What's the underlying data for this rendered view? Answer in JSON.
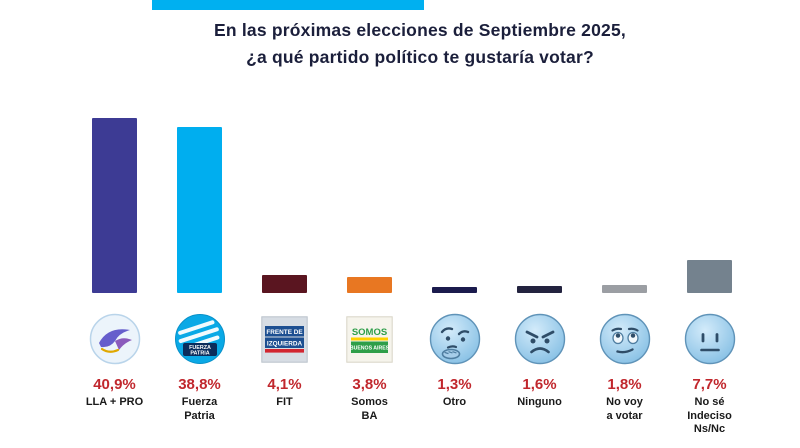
{
  "accent_color": "#00b0f0",
  "percent_color": "#c1272d",
  "title": {
    "line1": "En las próximas elecciones de Septiembre 2025,",
    "line2": "¿a qué partido político te gustaría votar?"
  },
  "chart_data": {
    "type": "bar",
    "title": "En las próximas elecciones de Septiembre 2025, ¿a qué partido político te gustaría votar?",
    "unit": "%",
    "ylim": [
      0,
      45
    ],
    "grid": false,
    "legend": "none",
    "categories": [
      "LLA + PRO",
      "Fuerza Patria",
      "FIT",
      "Somos BA",
      "Otro",
      "Ninguno",
      "No voy a votar",
      "No sé Indeciso Ns/Nc"
    ],
    "values": [
      40.9,
      38.8,
      4.1,
      3.8,
      1.3,
      1.6,
      1.8,
      7.7
    ],
    "max_value": 40.9,
    "bars": [
      {
        "percent": "40,9%",
        "value": 40.9,
        "color": "#3d3b94",
        "icon": "lla-pro-logo",
        "label_lines": [
          "LLA + PRO"
        ]
      },
      {
        "percent": "38,8%",
        "value": 38.8,
        "color": "#00aeef",
        "icon": "fuerza-patria-logo",
        "label_lines": [
          "Fuerza",
          "Patria"
        ]
      },
      {
        "percent": "4,1%",
        "value": 4.1,
        "color": "#5a1520",
        "icon": "fit-logo",
        "label_lines": [
          "FIT"
        ]
      },
      {
        "percent": "3,8%",
        "value": 3.8,
        "color": "#e87722",
        "icon": "somos-ba-logo",
        "label_lines": [
          "Somos",
          "BA"
        ]
      },
      {
        "percent": "1,3%",
        "value": 1.3,
        "color": "#1b1b4d",
        "icon": "thinking-face",
        "label_lines": [
          "Otro"
        ]
      },
      {
        "percent": "1,6%",
        "value": 1.6,
        "color": "#23233f",
        "icon": "angry-face",
        "label_lines": [
          "Ninguno"
        ]
      },
      {
        "percent": "1,8%",
        "value": 1.8,
        "color": "#9b9ea3",
        "icon": "unamused-face",
        "label_lines": [
          "No voy",
          "a votar"
        ]
      },
      {
        "percent": "7,7%",
        "value": 7.7,
        "color": "#74828e",
        "icon": "neutral-face",
        "label_lines": [
          "No sé",
          "Indeciso",
          "Ns/Nc"
        ]
      }
    ]
  },
  "logo_text": {
    "fuerza_patria_1": "FUERZA",
    "fuerza_patria_2": "PATRIA",
    "fit_1": "FRENTE DE",
    "fit_2": "IZQUIERDA",
    "somos_1": "SOMOS",
    "somos_2": "BUENOS AIRES"
  }
}
